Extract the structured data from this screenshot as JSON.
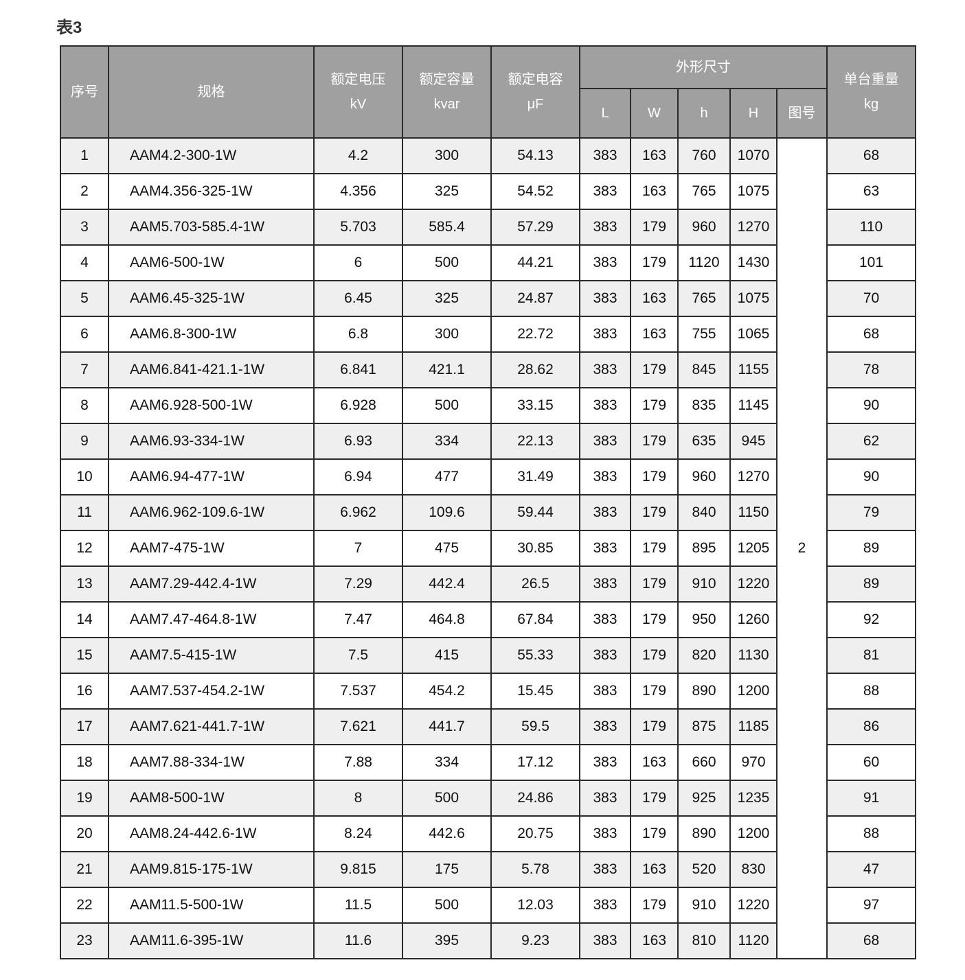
{
  "title": "表3",
  "header": {
    "no": "序号",
    "spec": "规格",
    "voltage": "额定电压",
    "voltage_unit": "kV",
    "capacity": "额定容量",
    "capacity_unit": "kvar",
    "capacitance": "额定电容",
    "capacitance_unit": "μF",
    "dimensions": "外形尺寸",
    "L": "L",
    "W": "W",
    "h": "h",
    "H": "H",
    "figure": "图号",
    "weight": "单台重量",
    "weight_unit": "kg"
  },
  "figure_no": "2",
  "rows": [
    [
      "1",
      "AAM4.2-300-1W",
      "4.2",
      "300",
      "54.13",
      "383",
      "163",
      "760",
      "1070",
      "68"
    ],
    [
      "2",
      "AAM4.356-325-1W",
      "4.356",
      "325",
      "54.52",
      "383",
      "163",
      "765",
      "1075",
      "63"
    ],
    [
      "3",
      "AAM5.703-585.4-1W",
      "5.703",
      "585.4",
      "57.29",
      "383",
      "179",
      "960",
      "1270",
      "110"
    ],
    [
      "4",
      "AAM6-500-1W",
      "6",
      "500",
      "44.21",
      "383",
      "179",
      "1120",
      "1430",
      "101"
    ],
    [
      "5",
      "AAM6.45-325-1W",
      "6.45",
      "325",
      "24.87",
      "383",
      "163",
      "765",
      "1075",
      "70"
    ],
    [
      "6",
      "AAM6.8-300-1W",
      "6.8",
      "300",
      "22.72",
      "383",
      "163",
      "755",
      "1065",
      "68"
    ],
    [
      "7",
      "AAM6.841-421.1-1W",
      "6.841",
      "421.1",
      "28.62",
      "383",
      "179",
      "845",
      "1155",
      "78"
    ],
    [
      "8",
      "AAM6.928-500-1W",
      "6.928",
      "500",
      "33.15",
      "383",
      "179",
      "835",
      "1145",
      "90"
    ],
    [
      "9",
      "AAM6.93-334-1W",
      "6.93",
      "334",
      "22.13",
      "383",
      "179",
      "635",
      "945",
      "62"
    ],
    [
      "10",
      "AAM6.94-477-1W",
      "6.94",
      "477",
      "31.49",
      "383",
      "179",
      "960",
      "1270",
      "90"
    ],
    [
      "11",
      "AAM6.962-109.6-1W",
      "6.962",
      "109.6",
      "59.44",
      "383",
      "179",
      "840",
      "1150",
      "79"
    ],
    [
      "12",
      "AAM7-475-1W",
      "7",
      "475",
      "30.85",
      "383",
      "179",
      "895",
      "1205",
      "89"
    ],
    [
      "13",
      "AAM7.29-442.4-1W",
      "7.29",
      "442.4",
      "26.5",
      "383",
      "179",
      "910",
      "1220",
      "89"
    ],
    [
      "14",
      "AAM7.47-464.8-1W",
      "7.47",
      "464.8",
      "67.84",
      "383",
      "179",
      "950",
      "1260",
      "92"
    ],
    [
      "15",
      "AAM7.5-415-1W",
      "7.5",
      "415",
      "55.33",
      "383",
      "179",
      "820",
      "1130",
      "81"
    ],
    [
      "16",
      "AAM7.537-454.2-1W",
      "7.537",
      "454.2",
      "15.45",
      "383",
      "179",
      "890",
      "1200",
      "88"
    ],
    [
      "17",
      "AAM7.621-441.7-1W",
      "7.621",
      "441.7",
      "59.5",
      "383",
      "179",
      "875",
      "1185",
      "86"
    ],
    [
      "18",
      "AAM7.88-334-1W",
      "7.88",
      "334",
      "17.12",
      "383",
      "163",
      "660",
      "970",
      "60"
    ],
    [
      "19",
      "AAM8-500-1W",
      "8",
      "500",
      "24.86",
      "383",
      "179",
      "925",
      "1235",
      "91"
    ],
    [
      "20",
      "AAM8.24-442.6-1W",
      "8.24",
      "442.6",
      "20.75",
      "383",
      "179",
      "890",
      "1200",
      "88"
    ],
    [
      "21",
      "AAM9.815-175-1W",
      "9.815",
      "175",
      "5.78",
      "383",
      "163",
      "520",
      "830",
      "47"
    ],
    [
      "22",
      "AAM11.5-500-1W",
      "11.5",
      "500",
      "12.03",
      "383",
      "179",
      "910",
      "1220",
      "97"
    ],
    [
      "23",
      "AAM11.6-395-1W",
      "11.6",
      "395",
      "9.23",
      "383",
      "163",
      "810",
      "1120",
      "68"
    ]
  ]
}
